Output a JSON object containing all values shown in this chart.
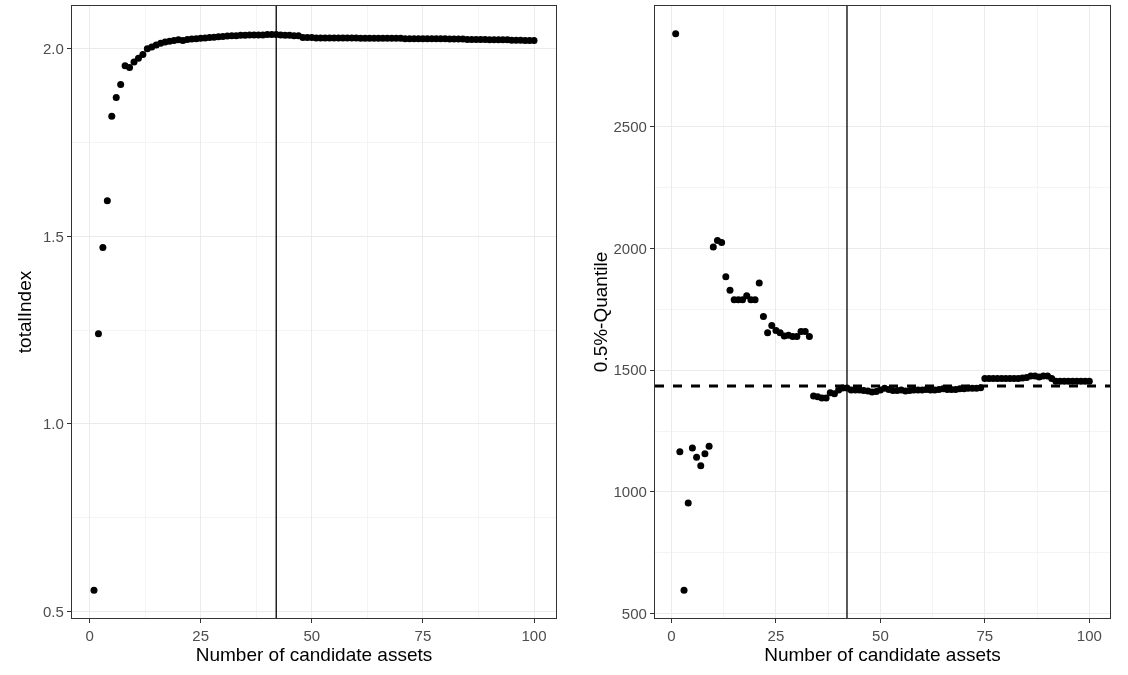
{
  "chart_data": [
    {
      "type": "scatter",
      "xlabel": "Number of candidate assets",
      "ylabel": "totalIndex",
      "grid": true,
      "marker": "circle",
      "xlim": [
        -3.95,
        104.95
      ],
      "ylim": [
        0.482,
        2.114
      ],
      "xticks": [
        0,
        25,
        50,
        75,
        100
      ],
      "yticks": [
        {
          "value": 0.5,
          "label": "0.5"
        },
        {
          "value": 1,
          "label": "1.0"
        },
        {
          "value": 1.5,
          "label": "1.5"
        },
        {
          "value": 2,
          "label": "2.0"
        }
      ],
      "x": [
        1,
        2,
        3,
        4,
        5,
        6,
        7,
        8,
        9,
        10,
        11,
        12,
        13,
        14,
        15,
        16,
        17,
        18,
        19,
        20,
        21,
        22,
        23,
        24,
        25,
        26,
        27,
        28,
        29,
        30,
        31,
        32,
        33,
        34,
        35,
        36,
        37,
        38,
        39,
        40,
        41,
        42,
        43,
        44,
        45,
        46,
        47,
        48,
        49,
        50,
        51,
        52,
        53,
        54,
        55,
        56,
        57,
        58,
        59,
        60,
        61,
        62,
        63,
        64,
        65,
        66,
        67,
        68,
        69,
        70,
        71,
        72,
        73,
        74,
        75,
        76,
        77,
        78,
        79,
        80,
        81,
        82,
        83,
        84,
        85,
        86,
        87,
        88,
        89,
        90,
        91,
        92,
        93,
        94,
        95,
        96,
        97,
        98,
        99,
        100
      ],
      "series": [
        {
          "color": "#000000",
          "values": [
            0.556,
            1.24,
            1.47,
            1.595,
            1.82,
            1.87,
            1.905,
            1.955,
            1.95,
            1.965,
            1.975,
            1.985,
            2.0,
            2.005,
            2.01,
            2.015,
            2.018,
            2.02,
            2.022,
            2.024,
            2.022,
            2.025,
            2.026,
            2.027,
            2.028,
            2.029,
            2.03,
            2.031,
            2.032,
            2.033,
            2.034,
            2.035,
            2.035,
            2.036,
            2.036,
            2.037,
            2.037,
            2.037,
            2.037,
            2.038,
            2.038,
            2.038,
            2.037,
            2.036,
            2.036,
            2.035,
            2.035,
            2.03,
            2.03,
            2.03,
            2.029,
            2.029,
            2.029,
            2.029,
            2.029,
            2.029,
            2.029,
            2.029,
            2.029,
            2.029,
            2.028,
            2.028,
            2.028,
            2.028,
            2.028,
            2.028,
            2.028,
            2.028,
            2.028,
            2.028,
            2.027,
            2.027,
            2.027,
            2.027,
            2.027,
            2.027,
            2.027,
            2.027,
            2.027,
            2.027,
            2.026,
            2.026,
            2.026,
            2.026,
            2.025,
            2.025,
            2.025,
            2.025,
            2.025,
            2.024,
            2.024,
            2.024,
            2.024,
            2.024,
            2.023,
            2.023,
            2.023,
            2.022,
            2.022,
            2.022
          ]
        }
      ],
      "ref_lines": [
        {
          "axis": "x",
          "value": 42,
          "color": "#000000",
          "line_style": "solid"
        }
      ]
    },
    {
      "type": "scatter",
      "xlabel": "Number of candidate assets",
      "ylabel": "0.5%-Quantile",
      "grid": true,
      "marker": "circle",
      "xlim": [
        -3.95,
        104.95
      ],
      "ylim": [
        482,
        2996
      ],
      "xticks": [
        0,
        25,
        50,
        75,
        100
      ],
      "yticks": [
        500,
        1000,
        1500,
        2000,
        2500
      ],
      "x": [
        1,
        2,
        3,
        4,
        5,
        6,
        7,
        8,
        9,
        10,
        11,
        12,
        13,
        14,
        15,
        16,
        17,
        18,
        19,
        20,
        21,
        22,
        23,
        24,
        25,
        26,
        27,
        28,
        29,
        30,
        31,
        32,
        33,
        34,
        35,
        36,
        37,
        38,
        39,
        40,
        41,
        42,
        43,
        44,
        45,
        46,
        47,
        48,
        49,
        50,
        51,
        52,
        53,
        54,
        55,
        56,
        57,
        58,
        59,
        60,
        61,
        62,
        63,
        64,
        65,
        66,
        67,
        68,
        69,
        70,
        71,
        72,
        73,
        74,
        75,
        76,
        77,
        78,
        79,
        80,
        81,
        82,
        83,
        84,
        85,
        86,
        87,
        88,
        89,
        90,
        91,
        92,
        93,
        94,
        95,
        96,
        97,
        98,
        99,
        100
      ],
      "series": [
        {
          "color": "#000000",
          "values": [
            2882,
            1165,
            596,
            954,
            1180,
            1142,
            1107,
            1157,
            1188,
            2006,
            2033,
            2025,
            1884,
            1828,
            1789,
            1789,
            1789,
            1806,
            1789,
            1789,
            1858,
            1721,
            1654,
            1684,
            1663,
            1654,
            1640,
            1643,
            1638,
            1638,
            1659,
            1659,
            1638,
            1394,
            1391,
            1386,
            1386,
            1407,
            1403,
            1419,
            1427,
            1427,
            1419,
            1419,
            1419,
            1417,
            1414,
            1410,
            1412,
            1419,
            1426,
            1421,
            1417,
            1417,
            1419,
            1414,
            1417,
            1419,
            1419,
            1419,
            1421,
            1419,
            1419,
            1421,
            1424,
            1421,
            1421,
            1421,
            1424,
            1424,
            1426,
            1426,
            1426,
            1428,
            1466,
            1466,
            1466,
            1466,
            1466,
            1466,
            1466,
            1466,
            1466,
            1468,
            1470,
            1476,
            1476,
            1472,
            1476,
            1476,
            1466,
            1455,
            1455,
            1455,
            1455,
            1455,
            1455,
            1455,
            1455,
            1455
          ]
        }
      ],
      "ref_lines": [
        {
          "axis": "x",
          "value": 42,
          "color": "#000000",
          "line_style": "solid"
        },
        {
          "axis": "y",
          "value": 1435,
          "color": "#000000",
          "line_style": "dashed"
        }
      ]
    }
  ]
}
